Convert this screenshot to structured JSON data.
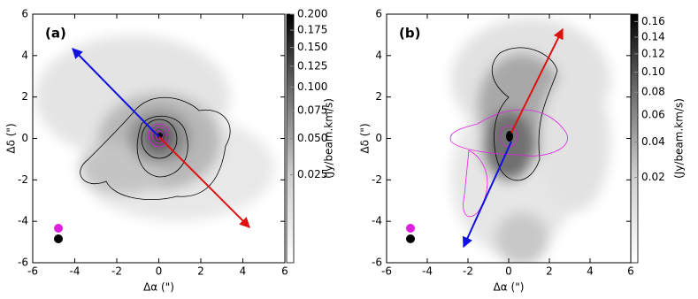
{
  "chart_data": [
    {
      "type": "map",
      "title": "(a)",
      "xlabel": "Δα (\")",
      "ylabel": "Δδ (\")",
      "xlim": [
        -6,
        6
      ],
      "ylim": [
        -6,
        6
      ],
      "xticks": [
        -6,
        -4,
        -2,
        0,
        2,
        4,
        6
      ],
      "yticks": [
        -6,
        -4,
        -2,
        0,
        2,
        4,
        6
      ],
      "colorbar": {
        "label": "(Jy/beam.km/s)",
        "scale": "sqrt",
        "clim": [
          0,
          0.2
        ],
        "ticks": [
          0.025,
          {
            "value": 0.05,
            "label": "0.050"
          },
          0.075,
          {
            "value": 0.1,
            "label": "0.100"
          },
          0.125,
          {
            "value": 0.15,
            "label": "0.150"
          },
          0.175,
          {
            "value": 0.2,
            "label": "0.200"
          }
        ]
      }
    },
    {
      "type": "map",
      "title": "(b)",
      "xlabel": "Δα (\")",
      "ylabel": "Δδ (\")",
      "xlim": [
        -6,
        6
      ],
      "ylim": [
        -6,
        6
      ],
      "xticks": [
        -6,
        -4,
        -2,
        0,
        2,
        4,
        6
      ],
      "yticks": [
        -6,
        -4,
        -2,
        0,
        2,
        4,
        6
      ],
      "colorbar": {
        "label": "(Jy/beam.km/s)",
        "scale": "sqrt",
        "clim": [
          0,
          0.17
        ],
        "ticks": [
          0.02,
          0.04,
          0.06,
          0.08,
          {
            "value": 0.1,
            "label": "0.10"
          },
          0.12,
          0.14,
          0.16
        ]
      }
    }
  ]
}
